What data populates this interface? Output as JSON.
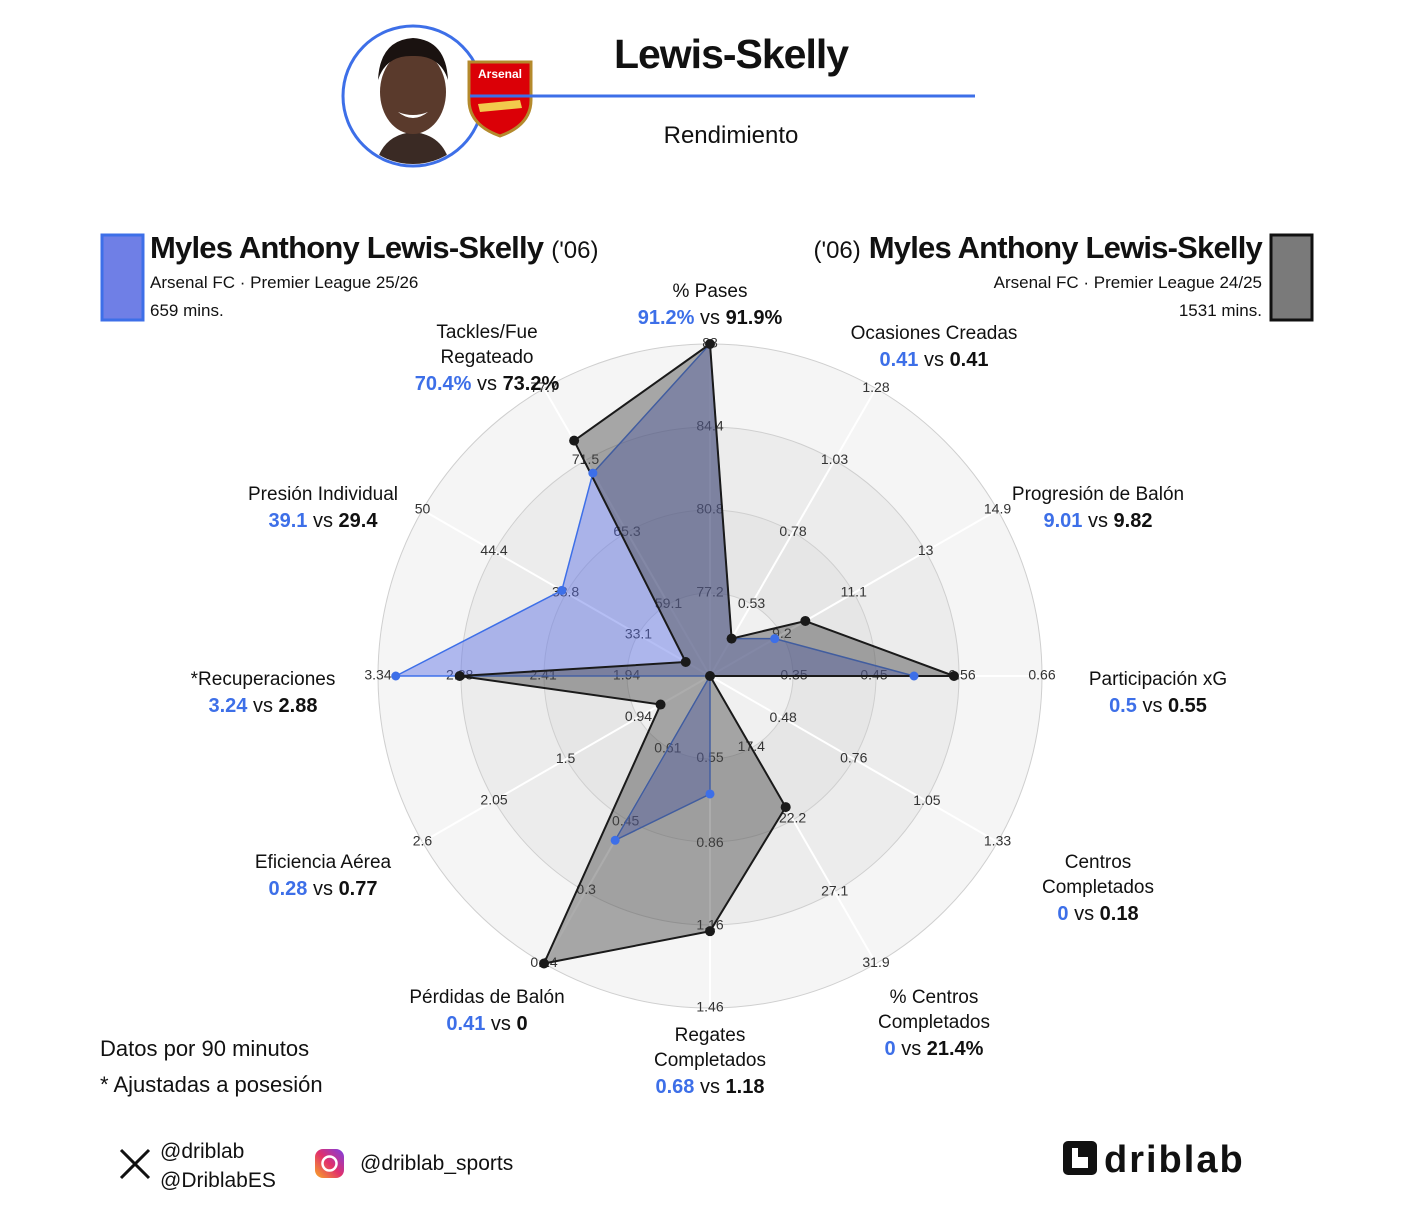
{
  "header": {
    "title": "Lewis-Skelly",
    "subtitle": "Rendimiento",
    "crest_text": "Arsenal"
  },
  "chart_data": {
    "type": "radar",
    "categories": [
      "% Pases",
      "Ocasiones Creadas",
      "Progresión de Balón",
      "Participación xG",
      "Centros\nCompletados",
      "% Centros\nCompletados",
      "Regates\nCompletados",
      "Pérdidas de Balón",
      "Eficiencia Aérea",
      "*Recuperaciones",
      "Presión Individual",
      "Tackles/Fue\nRegateado"
    ],
    "axes": [
      {
        "rlim": [
          73.6,
          88
        ],
        "ticks": [
          77.2,
          80.8,
          84.4,
          88
        ]
      },
      {
        "rlim": [
          0.28,
          1.28
        ],
        "ticks": [
          0.53,
          0.78,
          1.03,
          1.28
        ]
      },
      {
        "rlim": [
          7.3,
          14.9
        ],
        "ticks": [
          9.2,
          11.1,
          13,
          14.9
        ]
      },
      {
        "rlim": [
          0.245,
          0.66
        ],
        "ticks": [
          0.35,
          0.45,
          0.56,
          0.66
        ]
      },
      {
        "rlim": [
          0.19,
          1.33
        ],
        "ticks": [
          0.48,
          0.76,
          1.05,
          1.33
        ]
      },
      {
        "rlim": [
          12.6,
          31.9
        ],
        "ticks": [
          17.4,
          22.2,
          27.1,
          31.9
        ]
      },
      {
        "rlim": [
          0.25,
          1.46
        ],
        "ticks": [
          0.55,
          0.86,
          1.16,
          1.46
        ]
      },
      {
        "rlim": [
          0.77,
          0.14
        ],
        "ticks": [
          0.61,
          0.45,
          0.3,
          0.14
        ]
      },
      {
        "rlim": [
          0.39,
          2.6
        ],
        "ticks": [
          0.94,
          1.5,
          2.05,
          2.6
        ]
      },
      {
        "rlim": [
          1.47,
          3.34
        ],
        "ticks": [
          1.94,
          2.41,
          2.88,
          3.34
        ]
      },
      {
        "rlim": [
          27.5,
          50
        ],
        "ticks": [
          33.1,
          38.8,
          44.4,
          50
        ]
      },
      {
        "rlim": [
          52.9,
          77.7
        ],
        "ticks": [
          59.1,
          65.3,
          71.5,
          77.7
        ]
      }
    ],
    "comparison_word": "vs",
    "series": [
      {
        "name": "Myles Anthony Lewis-Skelly",
        "born": "('06)",
        "details": "Arsenal FC · Premier League 25/26",
        "minutes": "659 mins.",
        "color": "#3d6fe8",
        "fill": "rgba(90,110,230,0.45)",
        "values": [
          91.2,
          0.41,
          9.01,
          0.5,
          0,
          0,
          0.68,
          0.41,
          0.28,
          3.24,
          39.1,
          70.4
        ],
        "value_labels": [
          "91.2%",
          "0.41",
          "9.01",
          "0.5",
          "0",
          "0",
          "0.68",
          "0.41",
          "0.28",
          "3.24",
          "39.1",
          "70.4%"
        ]
      },
      {
        "name": "Myles Anthony Lewis-Skelly",
        "born": "('06)",
        "details": "Arsenal FC · Premier League 24/25",
        "minutes": "1531 mins.",
        "color": "#1a1a1a",
        "fill": "rgba(70,70,70,0.45)",
        "values": [
          91.9,
          0.41,
          9.82,
          0.55,
          0.18,
          21.4,
          1.18,
          0,
          0.77,
          2.88,
          29.4,
          73.2
        ],
        "value_labels": [
          "91.9%",
          "0.41",
          "9.82",
          "0.55",
          "0.18",
          "21.4%",
          "1.18",
          "0",
          "0.77",
          "2.88",
          "29.4",
          "73.2%"
        ]
      }
    ]
  },
  "footer": {
    "notes": [
      "Datos por 90 minutos",
      "* Ajustadas a posesión"
    ],
    "x_handles": [
      "@driblab",
      "@DriblabES"
    ],
    "instagram": "@driblab_sports",
    "logo": "driblab"
  }
}
